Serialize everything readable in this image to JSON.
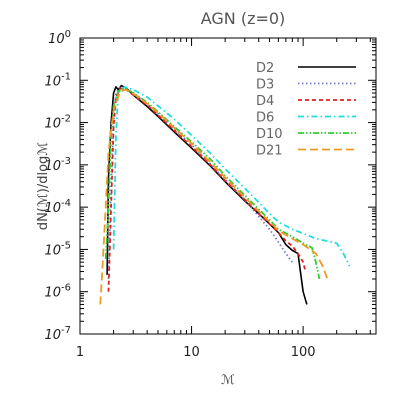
{
  "chart_data": {
    "type": "line",
    "title": "AGN (z=0)",
    "xlabel": "ℳ",
    "ylabel": "dN(ℳ)/dlogℳ",
    "xscale": "log",
    "yscale": "log",
    "xlim": [
      1,
      450
    ],
    "ylim": [
      1e-07,
      1
    ],
    "x_ticks": [
      {
        "value": 1,
        "label": "1"
      },
      {
        "value": 10,
        "label": "10"
      },
      {
        "value": 100,
        "label": "100"
      }
    ],
    "y_ticks": [
      {
        "value": 1.0,
        "base": "10",
        "exp": "0"
      },
      {
        "value": 0.1,
        "base": "10",
        "exp": "-1"
      },
      {
        "value": 0.01,
        "base": "10",
        "exp": "-2"
      },
      {
        "value": 0.001,
        "base": "10",
        "exp": "-3"
      },
      {
        "value": 0.0001,
        "base": "10",
        "exp": "-4"
      },
      {
        "value": 1e-05,
        "base": "10",
        "exp": "-5"
      },
      {
        "value": 1e-06,
        "base": "10",
        "exp": "-6"
      },
      {
        "value": 1e-07,
        "base": "10",
        "exp": "-7"
      }
    ],
    "legend_position": "top-right",
    "grid": false,
    "series": [
      {
        "name": "D2",
        "color": "#000000",
        "dash": "solid",
        "points": [
          [
            1.75,
            2.5e-06
          ],
          [
            1.8,
            0.0005
          ],
          [
            1.9,
            0.01
          ],
          [
            2.0,
            0.05
          ],
          [
            2.1,
            0.07
          ],
          [
            2.2,
            0.06
          ],
          [
            2.35,
            0.075
          ],
          [
            2.6,
            0.065
          ],
          [
            3,
            0.045
          ],
          [
            4,
            0.024
          ],
          [
            5,
            0.014
          ],
          [
            7,
            0.006
          ],
          [
            10,
            0.0025
          ],
          [
            15,
            0.0009
          ],
          [
            20,
            0.0004
          ],
          [
            30,
            0.00014
          ],
          [
            40,
            7e-05
          ],
          [
            50,
            4e-05
          ],
          [
            60,
            2.5e-05
          ],
          [
            70,
            1.3e-05
          ],
          [
            80,
            9.5e-06
          ],
          [
            90,
            8e-06
          ],
          [
            100,
            1e-06
          ],
          [
            108,
            5e-07
          ]
        ]
      },
      {
        "name": "D3",
        "color": "#7777cc",
        "dash": "dotted",
        "points": [
          [
            1.8,
            2e-06
          ],
          [
            1.9,
            0.0003
          ],
          [
            2.0,
            0.01
          ],
          [
            2.1,
            0.05
          ],
          [
            2.3,
            0.07
          ],
          [
            2.6,
            0.065
          ],
          [
            3,
            0.05
          ],
          [
            4,
            0.028
          ],
          [
            5,
            0.016
          ],
          [
            7,
            0.007
          ],
          [
            10,
            0.003
          ],
          [
            15,
            0.001
          ],
          [
            20,
            0.00045
          ],
          [
            30,
            0.00015
          ],
          [
            40,
            6e-05
          ],
          [
            50,
            3e-05
          ],
          [
            60,
            1.5e-05
          ],
          [
            70,
            8e-06
          ],
          [
            80,
            5e-06
          ]
        ]
      },
      {
        "name": "D4",
        "color": "#dd2222",
        "dash": "dashed",
        "points": [
          [
            1.8,
            1e-06
          ],
          [
            1.9,
            0.0001
          ],
          [
            2.0,
            0.008
          ],
          [
            2.1,
            0.04
          ],
          [
            2.3,
            0.065
          ],
          [
            2.6,
            0.06
          ],
          [
            3,
            0.045
          ],
          [
            4,
            0.026
          ],
          [
            5,
            0.015
          ],
          [
            7,
            0.0065
          ],
          [
            10,
            0.0027
          ],
          [
            15,
            0.00095
          ],
          [
            20,
            0.00042
          ],
          [
            30,
            0.00015
          ],
          [
            40,
            7e-05
          ],
          [
            50,
            4e-05
          ],
          [
            60,
            2.5e-05
          ],
          [
            70,
            1.6e-05
          ],
          [
            80,
            1.2e-05
          ],
          [
            90,
            8e-06
          ],
          [
            100,
            5e-06
          ],
          [
            105,
            3e-06
          ]
        ]
      },
      {
        "name": "D6",
        "color": "#22dddd",
        "dash": "dash-dot",
        "points": [
          [
            2.0,
            1e-05
          ],
          [
            2.1,
            0.005
          ],
          [
            2.2,
            0.05
          ],
          [
            2.5,
            0.07
          ],
          [
            3,
            0.06
          ],
          [
            4,
            0.04
          ],
          [
            5,
            0.025
          ],
          [
            7,
            0.012
          ],
          [
            10,
            0.005
          ],
          [
            15,
            0.0018
          ],
          [
            20,
            0.0008
          ],
          [
            30,
            0.00028
          ],
          [
            40,
            0.00013
          ],
          [
            50,
            7e-05
          ],
          [
            60,
            4.5e-05
          ],
          [
            80,
            3e-05
          ],
          [
            100,
            2.4e-05
          ],
          [
            130,
            1.8e-05
          ],
          [
            160,
            1.6e-05
          ],
          [
            200,
            1.4e-05
          ],
          [
            230,
            8e-06
          ],
          [
            260,
            4e-06
          ]
        ]
      },
      {
        "name": "D10",
        "color": "#33cc33",
        "dash": "dash-dot-dot",
        "points": [
          [
            1.7,
            6e-06
          ],
          [
            1.8,
            0.0001
          ],
          [
            1.9,
            0.005
          ],
          [
            2.0,
            0.025
          ],
          [
            2.2,
            0.055
          ],
          [
            2.5,
            0.065
          ],
          [
            3,
            0.05
          ],
          [
            4,
            0.03
          ],
          [
            5,
            0.018
          ],
          [
            7,
            0.008
          ],
          [
            10,
            0.0035
          ],
          [
            15,
            0.0013
          ],
          [
            20,
            0.00055
          ],
          [
            30,
            0.00019
          ],
          [
            40,
            9e-05
          ],
          [
            50,
            5e-05
          ],
          [
            60,
            3e-05
          ],
          [
            80,
            2e-05
          ],
          [
            100,
            1.4e-05
          ],
          [
            120,
            1.1e-05
          ],
          [
            130,
            5e-06
          ],
          [
            140,
            2e-06
          ]
        ]
      },
      {
        "name": "D21",
        "color": "#ee9922",
        "dash": "long-dashed",
        "points": [
          [
            1.52,
            5e-07
          ],
          [
            1.6,
            5e-06
          ],
          [
            1.7,
            0.0001
          ],
          [
            1.8,
            0.002
          ],
          [
            2.0,
            0.02
          ],
          [
            2.3,
            0.055
          ],
          [
            2.6,
            0.06
          ],
          [
            3,
            0.048
          ],
          [
            4,
            0.028
          ],
          [
            5,
            0.017
          ],
          [
            7,
            0.0075
          ],
          [
            10,
            0.0032
          ],
          [
            15,
            0.0011
          ],
          [
            20,
            0.0005
          ],
          [
            30,
            0.00017
          ],
          [
            40,
            8e-05
          ],
          [
            50,
            4.5e-05
          ],
          [
            60,
            2.8e-05
          ],
          [
            80,
            1.8e-05
          ],
          [
            100,
            1.3e-05
          ],
          [
            130,
            8e-06
          ],
          [
            150,
            4e-06
          ],
          [
            165,
            2e-06
          ]
        ]
      }
    ]
  }
}
